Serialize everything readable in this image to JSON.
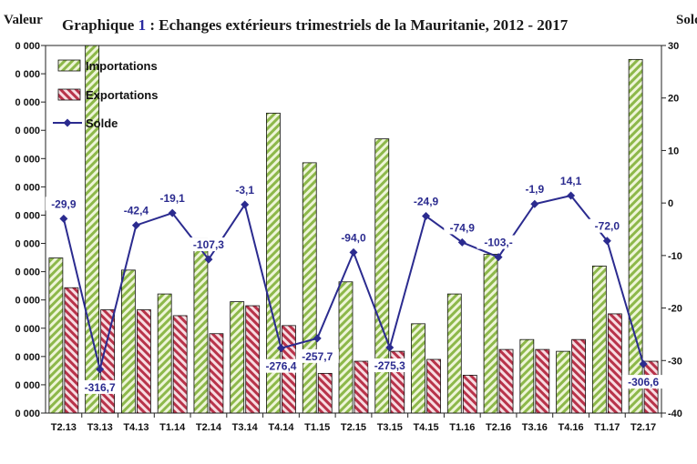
{
  "title_prefix": "Graphique ",
  "title_num": "1",
  "title_rest": " : Echanges extérieurs trimestriels de la Mauritanie, 2012 - 2017",
  "ylabel_left": "Valeur",
  "ylabel_right": "Solde",
  "colors": {
    "import_green": "#8db84a",
    "export_red": "#b8334a",
    "solde": "#2b2b8f"
  },
  "chart_data": {
    "type": "bar",
    "title": "Graphique 1 : Echanges extérieurs trimestriels de la Mauritanie, 2012 - 2017",
    "xlabel": "",
    "ylabel": "Valeur",
    "y2label": "Solde",
    "categories": [
      "T2.13",
      "T3.13",
      "T4.13",
      "T1.14",
      "T2.14",
      "T3.14",
      "T4.14",
      "T1.15",
      "T2.15",
      "T3.15",
      "T4.15",
      "T1.16",
      "T2.16",
      "T3.16",
      "T4.16",
      "T1.17",
      "T2.17"
    ],
    "left_tick_labels": [
      "0 000",
      "0 000",
      "0 000",
      "0 000",
      "0 000",
      "0 000",
      "0 000",
      "0 000",
      "0 000",
      "0 000",
      "0 000",
      "0 000",
      "0 000"
    ],
    "right_tick_labels": [
      "30",
      "20",
      "10",
      "0",
      "-10",
      "-20",
      "-30",
      "-40"
    ],
    "right_ylim": [
      -400,
      300
    ],
    "series": [
      {
        "name": "Importations",
        "kind": "bar",
        "values_pct": [
          42.2,
          100,
          38.9,
          32.4,
          47.6,
          30.3,
          81.6,
          68.1,
          35.7,
          74.6,
          24.3,
          32.4,
          43.2,
          20.0,
          16.8,
          40.0,
          96.2
        ]
      },
      {
        "name": "Exportations",
        "kind": "bar",
        "values_pct": [
          34.1,
          28.1,
          28.1,
          26.5,
          21.6,
          29.2,
          23.8,
          10.8,
          14.1,
          16.8,
          14.6,
          10.3,
          17.3,
          17.3,
          20.0,
          27.0,
          14.1
        ]
      },
      {
        "name": "Solde",
        "kind": "line",
        "axis": "right",
        "values": [
          -29.9,
          -316.7,
          -42.4,
          -19.1,
          -107.3,
          -3.1,
          -276.4,
          -257.7,
          -94.0,
          -275.3,
          -24.9,
          -74.9,
          -103.0,
          -1.9,
          14.1,
          -72.0,
          -306.6
        ]
      }
    ],
    "data_labels": [
      "-29,9",
      "-316,7",
      "-42,4",
      "-19,1",
      "-107,3",
      "-3,1",
      "-276,4",
      "-257,7",
      "-94,0",
      "-275,3",
      "-24,9",
      "-74,9",
      "-103,-",
      "-1,9",
      "14,1",
      "-72,0",
      "-306,6"
    ],
    "legend": [
      "Importations",
      "Exportations",
      "Solde"
    ],
    "legend_position": "top-left"
  }
}
